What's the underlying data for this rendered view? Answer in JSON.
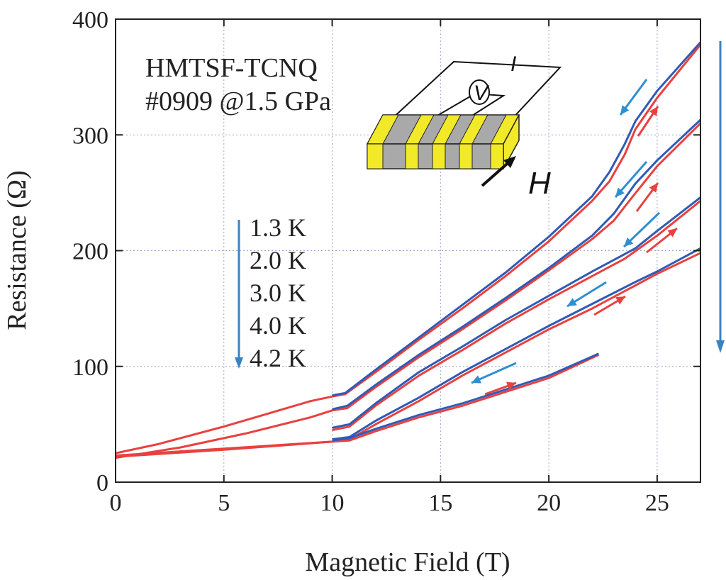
{
  "chart_data": {
    "type": "line",
    "title": "",
    "xlabel": "Magnetic Field (T)",
    "ylabel": "Resistance (Ω)",
    "xlim": [
      0,
      27
    ],
    "ylim": [
      0,
      400
    ],
    "xticks": [
      0,
      5,
      10,
      15,
      20,
      25
    ],
    "yticks": [
      0,
      100,
      200,
      300,
      400
    ],
    "grid": true,
    "sample_label": "HMTSF-TCNQ",
    "sample_condition": "#0909 @1.5 GPa",
    "inset_current_label": "I",
    "inset_voltage_label": "V",
    "inset_field_label": "H",
    "legend_order_note": "temperature increases downward",
    "series": [
      {
        "name": "1.3 K",
        "up_sweep": [
          [
            0,
            25
          ],
          [
            2,
            33
          ],
          [
            5,
            48
          ],
          [
            9,
            70
          ],
          [
            10,
            74
          ],
          [
            10.6,
            76
          ],
          [
            12,
            95
          ],
          [
            14,
            123
          ],
          [
            16,
            150
          ],
          [
            18,
            178
          ],
          [
            20,
            208
          ],
          [
            22,
            243
          ],
          [
            22.8,
            260
          ],
          [
            23.5,
            283
          ],
          [
            24,
            305
          ],
          [
            25,
            332
          ],
          [
            27,
            378
          ]
        ],
        "down_sweep": [
          [
            27,
            380
          ],
          [
            25,
            338
          ],
          [
            24,
            312
          ],
          [
            23.5,
            292
          ],
          [
            22.8,
            268
          ],
          [
            22,
            247
          ],
          [
            20,
            212
          ],
          [
            18,
            181
          ],
          [
            16,
            153
          ],
          [
            14,
            125
          ],
          [
            12,
            97
          ],
          [
            10.6,
            77
          ],
          [
            10,
            75
          ]
        ]
      },
      {
        "name": "2.0 K",
        "up_sweep": [
          [
            0,
            21
          ],
          [
            3,
            30
          ],
          [
            6,
            42
          ],
          [
            9,
            56
          ],
          [
            10,
            62
          ],
          [
            10.7,
            64
          ],
          [
            12,
            82
          ],
          [
            14,
            108
          ],
          [
            16,
            132
          ],
          [
            18,
            157
          ],
          [
            20,
            183
          ],
          [
            22,
            210
          ],
          [
            23,
            226
          ],
          [
            23.8,
            245
          ],
          [
            25,
            273
          ],
          [
            27,
            310
          ]
        ],
        "down_sweep": [
          [
            27,
            313
          ],
          [
            25,
            278
          ],
          [
            24,
            258
          ],
          [
            23,
            232
          ],
          [
            22,
            213
          ],
          [
            20,
            185
          ],
          [
            18,
            159
          ],
          [
            16,
            134
          ],
          [
            14,
            110
          ],
          [
            12,
            84
          ],
          [
            10.7,
            66
          ],
          [
            10,
            63
          ]
        ]
      },
      {
        "name": "3.0 K",
        "up_sweep": [
          [
            10,
            45
          ],
          [
            10.8,
            48
          ],
          [
            12,
            66
          ],
          [
            14,
            92
          ],
          [
            16,
            114
          ],
          [
            18,
            137
          ],
          [
            20,
            158
          ],
          [
            22,
            178
          ],
          [
            23.5,
            193
          ],
          [
            25,
            213
          ],
          [
            27,
            243
          ]
        ],
        "down_sweep": [
          [
            27,
            246
          ],
          [
            25,
            217
          ],
          [
            24,
            202
          ],
          [
            23.5,
            197
          ],
          [
            22,
            182
          ],
          [
            20,
            161
          ],
          [
            18,
            140
          ],
          [
            16,
            117
          ],
          [
            14,
            95
          ],
          [
            12,
            68
          ],
          [
            10.8,
            50
          ],
          [
            10,
            47
          ]
        ]
      },
      {
        "name": "4.0 K",
        "up_sweep": [
          [
            0,
            23
          ],
          [
            5,
            29
          ],
          [
            10,
            35
          ],
          [
            10.8,
            37
          ],
          [
            12,
            50
          ],
          [
            14,
            70
          ],
          [
            16,
            92
          ],
          [
            18,
            112
          ],
          [
            20,
            132
          ],
          [
            22,
            150
          ],
          [
            24,
            170
          ],
          [
            25,
            180
          ],
          [
            27,
            198
          ]
        ],
        "down_sweep": [
          [
            27,
            202
          ],
          [
            25,
            182
          ],
          [
            24,
            173
          ],
          [
            22,
            154
          ],
          [
            20,
            135
          ],
          [
            18,
            115
          ],
          [
            16,
            95
          ],
          [
            14,
            73
          ],
          [
            12,
            53
          ],
          [
            10.8,
            39
          ],
          [
            10,
            37
          ]
        ]
      },
      {
        "name": "4.2 K",
        "up_sweep": [
          [
            0,
            22
          ],
          [
            5,
            28
          ],
          [
            10,
            35
          ],
          [
            10.8,
            36
          ],
          [
            12,
            44
          ],
          [
            14,
            56
          ],
          [
            16,
            66
          ],
          [
            18,
            78
          ],
          [
            20,
            90
          ],
          [
            22.3,
            110
          ]
        ],
        "down_sweep": [
          [
            22.3,
            111
          ],
          [
            20,
            92
          ],
          [
            18,
            80
          ],
          [
            16,
            68
          ],
          [
            14,
            58
          ],
          [
            12,
            46
          ],
          [
            10.8,
            38
          ],
          [
            10,
            36
          ]
        ]
      }
    ]
  },
  "colors": {
    "up_sweep": "#e8413f",
    "down_sweep": "#2f5bb7",
    "arrow_up": "#e8413f",
    "arrow_down": "#2f8fd1",
    "legend_arrow": "#3a83c2",
    "grid": "#9aa3d1",
    "axis": "#222222",
    "inset_yellow": "#f2e928",
    "inset_gray": "#a9a9a9"
  }
}
